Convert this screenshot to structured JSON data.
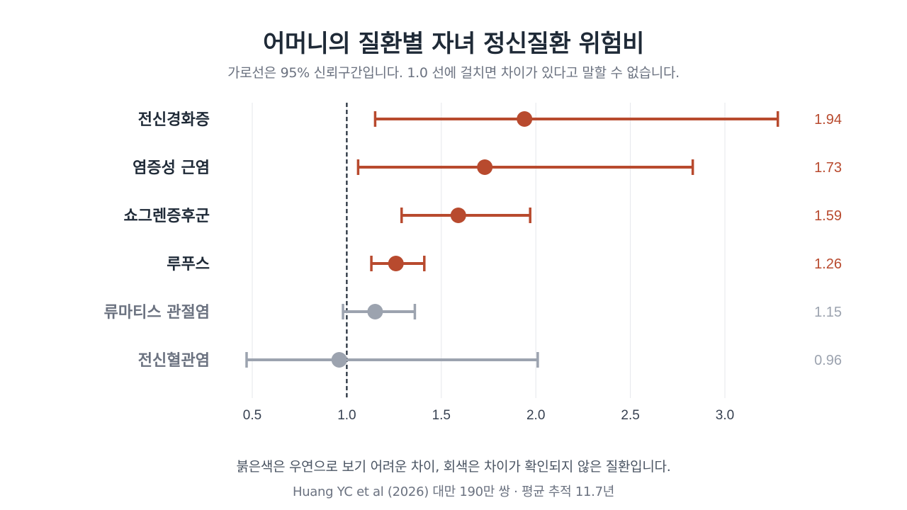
{
  "title": "어머니의 질환별 자녀 정신질환 위험비",
  "subtitle": "가로선은 95% 신뢰구간입니다. 1.0 선에 걸치면 차이가 있다고 말할 수 없습니다.",
  "footnote": "붉은색은 우연으로 보기 어려운 차이, 회색은 차이가 확인되지 않은 질환입니다.",
  "source": "Huang YC et al (2026) 대만 190만 쌍 · 평균 추적 11.7년",
  "colors": {
    "significant": "#b84a2e",
    "not_significant": "#9ca3af",
    "label_significant": "#1f2a37",
    "label_not_significant": "#6b7280",
    "grid": "#e5e7eb",
    "reference_line": "#1f2a37"
  },
  "chart_data": {
    "type": "forest",
    "xlim": [
      0.5,
      3.0
    ],
    "xticks": [
      "0.5",
      "1.0",
      "1.5",
      "2.0",
      "2.5",
      "3.0"
    ],
    "reference_x": 1.0,
    "grid": true,
    "rows": [
      {
        "label": "전신경화증",
        "estimate": 1.94,
        "estimate_label": "1.94",
        "ci_low": 1.15,
        "ci_high": 3.28,
        "significant": true
      },
      {
        "label": "염증성 근염",
        "estimate": 1.73,
        "estimate_label": "1.73",
        "ci_low": 1.06,
        "ci_high": 2.83,
        "significant": true
      },
      {
        "label": "쇼그렌증후군",
        "estimate": 1.59,
        "estimate_label": "1.59",
        "ci_low": 1.29,
        "ci_high": 1.97,
        "significant": true
      },
      {
        "label": "루푸스",
        "estimate": 1.26,
        "estimate_label": "1.26",
        "ci_low": 1.13,
        "ci_high": 1.41,
        "significant": true
      },
      {
        "label": "류마티스 관절염",
        "estimate": 1.15,
        "estimate_label": "1.15",
        "ci_low": 0.98,
        "ci_high": 1.36,
        "significant": false
      },
      {
        "label": "전신혈관염",
        "estimate": 0.96,
        "estimate_label": "0.96",
        "ci_low": 0.47,
        "ci_high": 2.01,
        "significant": false
      }
    ]
  }
}
